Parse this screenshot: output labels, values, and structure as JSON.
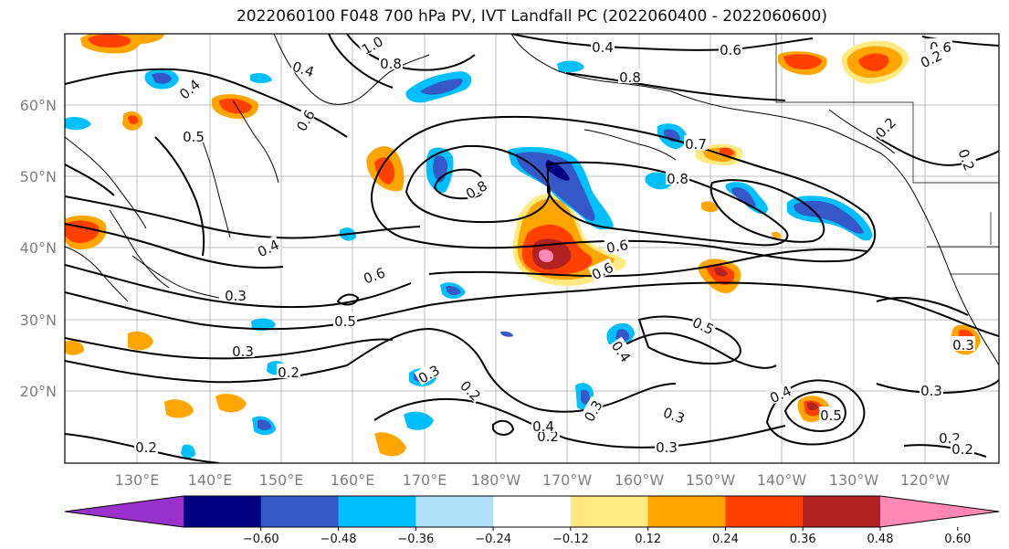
{
  "title": "2022060100 F048 700 hPa PV, IVT Landfall PC (2022060400 - 2022060600)",
  "lat_labels": [
    "60°N",
    "50°N",
    "40°N",
    "30°N",
    "20°N"
  ],
  "lon_labels": [
    "130°E",
    "140°E",
    "150°E",
    "160°E",
    "170°E",
    "180°W",
    "170°W",
    "160°W",
    "150°W",
    "140°W",
    "130°W",
    "120°W"
  ],
  "colorbar": {
    "colors": [
      "#9932cc",
      "#000080",
      "#3557c8",
      "#00bfff",
      "#b0e0fa",
      "#ffffff",
      "#ffe980",
      "#ffa500",
      "#ff4000",
      "#b22222",
      "#ff88b4"
    ],
    "tick_labels": [
      "−0.60",
      "−0.48",
      "−0.36",
      "−0.24",
      "−0.12",
      "0.12",
      "0.24",
      "0.36",
      "0.48",
      "0.60"
    ]
  },
  "contour_labels": [
    {
      "text": "0.4"
    },
    {
      "text": "1.0"
    },
    {
      "text": "0.8"
    },
    {
      "text": "0.4"
    },
    {
      "text": "0.6"
    },
    {
      "text": "0.8"
    },
    {
      "text": "0.5"
    },
    {
      "text": "0.4"
    },
    {
      "text": "0.6"
    },
    {
      "text": "0.2"
    },
    {
      "text": "0.8"
    },
    {
      "text": "0.7"
    },
    {
      "text": "0.8"
    },
    {
      "text": "0.4"
    },
    {
      "text": "0.6"
    },
    {
      "text": "0.6"
    },
    {
      "text": "0.6"
    },
    {
      "text": "0.3"
    },
    {
      "text": "0.5"
    },
    {
      "text": "0.3"
    },
    {
      "text": "0.2"
    },
    {
      "text": "0.3"
    },
    {
      "text": "0.2"
    },
    {
      "text": "0.4"
    },
    {
      "text": "0.2"
    },
    {
      "text": "0.3"
    },
    {
      "text": "0.3"
    },
    {
      "text": "0.5"
    },
    {
      "text": "0.4"
    },
    {
      "text": "0.3"
    },
    {
      "text": "0.4"
    },
    {
      "text": "0.2"
    },
    {
      "text": "0.3"
    },
    {
      "text": "0.2"
    },
    {
      "text": "0.2"
    },
    {
      "text": "0.3"
    },
    {
      "text": "0.2"
    },
    {
      "text": "0.5"
    },
    {
      "text": "0.6"
    },
    {
      "text": "0.2"
    }
  ]
}
